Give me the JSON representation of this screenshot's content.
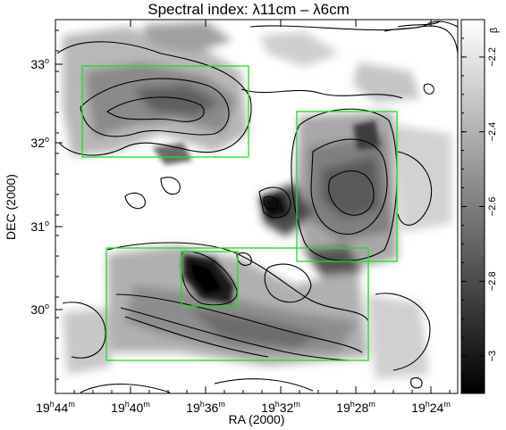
{
  "chart_data": {
    "type": "heatmap",
    "title": "Spectral index: λ11cm – λ6cm",
    "xlabel": "RA (2000)",
    "ylabel": "DEC (2000)",
    "colorbar_label": "β",
    "x_ticks": [
      {
        "h": "19",
        "m": "44"
      },
      {
        "h": "19",
        "m": "40"
      },
      {
        "h": "19",
        "m": "36"
      },
      {
        "h": "19",
        "m": "32"
      },
      {
        "h": "19",
        "m": "28"
      },
      {
        "h": "19",
        "m": "24"
      }
    ],
    "y_ticks": [
      {
        "deg": "33",
        "value": 33
      },
      {
        "deg": "32",
        "value": 32
      },
      {
        "deg": "31",
        "value": 31
      },
      {
        "deg": "30",
        "value": 30
      }
    ],
    "colorbar": {
      "range": [
        -3.1,
        -2.1
      ],
      "ticks": [
        {
          "value": -2.2,
          "label": "−2.2"
        },
        {
          "value": -2.4,
          "label": "−2.4"
        },
        {
          "value": -2.6,
          "label": "−2.6"
        },
        {
          "value": -2.8,
          "label": "−2.8"
        },
        {
          "value": -3.0,
          "label": "−3"
        }
      ],
      "colormap": "grayscale, white = flatter (−2.1), black = steeper (−3.1)"
    },
    "box_color": "#22dd22",
    "contour_color": "#000000"
  }
}
